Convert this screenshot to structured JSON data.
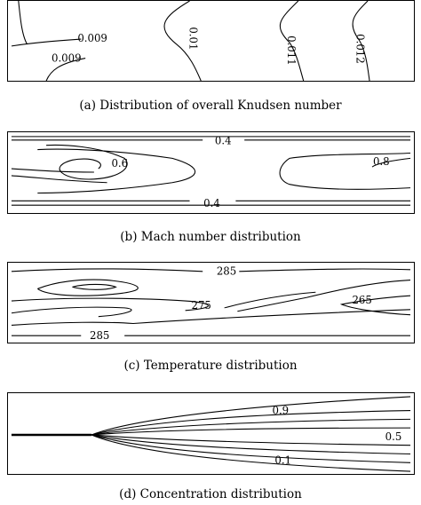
{
  "panels": [
    {
      "caption": "(a) Distribution of overall Knudsen number",
      "labels": [
        "0.009",
        "0.009",
        "0.01",
        "0.011",
        "0.012"
      ]
    },
    {
      "caption": "(b) Mach number distribution",
      "labels": [
        "0.4",
        "0.6",
        "0.8",
        "0.4"
      ]
    },
    {
      "caption": "(c) Temperature distribution",
      "labels": [
        "285",
        "275",
        "265",
        "285"
      ]
    },
    {
      "caption": "(d) Concentration distribution",
      "labels": [
        "0.9",
        "0.5",
        "0.1"
      ]
    }
  ]
}
